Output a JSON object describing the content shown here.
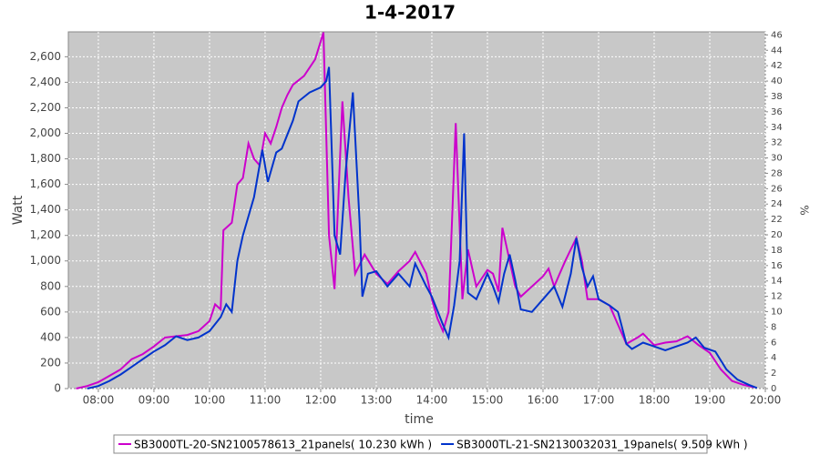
{
  "chart_data": {
    "type": "line",
    "title": "1-4-2017",
    "x_label": "time",
    "y_label": "Watt",
    "y2_label": "%",
    "xlim": [
      7.46,
      20.0
    ],
    "xticks": [
      {
        "value": 8,
        "label": "08:00"
      },
      {
        "value": 9,
        "label": "09:00"
      },
      {
        "value": 10,
        "label": "10:00"
      },
      {
        "value": 11,
        "label": "11:00"
      },
      {
        "value": 12,
        "label": "12:00"
      },
      {
        "value": 13,
        "label": "13:00"
      },
      {
        "value": 14,
        "label": "14:00"
      },
      {
        "value": 15,
        "label": "15:00"
      },
      {
        "value": 16,
        "label": "16:00"
      },
      {
        "value": 17,
        "label": "17:00"
      },
      {
        "value": 18,
        "label": "18:00"
      },
      {
        "value": 19,
        "label": "19:00"
      },
      {
        "value": 20,
        "label": "20:00"
      }
    ],
    "ylim": [
      0,
      2795
    ],
    "yticks": [
      0,
      200,
      400,
      600,
      800,
      {
        "value": 1000,
        "label": "1,000"
      },
      {
        "value": 1200,
        "label": "1,200"
      },
      {
        "value": 1400,
        "label": "1,400"
      },
      {
        "value": 1600,
        "label": "1,600"
      },
      {
        "value": 1800,
        "label": "1,800"
      },
      {
        "value": 2000,
        "label": "2,000"
      },
      {
        "value": 2200,
        "label": "2,200"
      },
      {
        "value": 2400,
        "label": "2,400"
      },
      {
        "value": 2600,
        "label": "2,600"
      }
    ],
    "y2lim": [
      0,
      46.4
    ],
    "y2ticks": [
      0,
      2,
      4,
      6,
      8,
      10,
      12,
      14,
      16,
      18,
      20,
      22,
      24,
      26,
      28,
      30,
      32,
      34,
      36,
      38,
      40,
      42,
      44,
      46
    ],
    "grid": true,
    "series": [
      {
        "name": "SB3000TL-20-SN2100578613_21panels( 10.230 kWh )",
        "color": "#cc00cc",
        "x": [
          7.6,
          7.8,
          8.0,
          8.2,
          8.4,
          8.6,
          8.8,
          9.0,
          9.2,
          9.4,
          9.6,
          9.8,
          10.0,
          10.1,
          10.2,
          10.25,
          10.4,
          10.5,
          10.6,
          10.7,
          10.8,
          10.9,
          11.0,
          11.1,
          11.2,
          11.3,
          11.4,
          11.5,
          11.7,
          11.9,
          12.05,
          12.15,
          12.25,
          12.39,
          12.5,
          12.62,
          12.79,
          13.0,
          13.2,
          13.4,
          13.6,
          13.7,
          13.9,
          14.0,
          14.1,
          14.2,
          14.3,
          14.43,
          14.55,
          14.65,
          14.8,
          15.0,
          15.1,
          15.2,
          15.27,
          15.4,
          15.5,
          15.6,
          15.8,
          16.0,
          16.1,
          16.2,
          16.4,
          16.6,
          16.7,
          16.8,
          17.0,
          17.2,
          17.35,
          17.5,
          17.7,
          17.8,
          18.0,
          18.2,
          18.4,
          18.6,
          18.8,
          19.0,
          19.2,
          19.4,
          19.6,
          19.8
        ],
        "values": [
          0,
          20,
          50,
          100,
          150,
          230,
          270,
          330,
          400,
          410,
          420,
          450,
          530,
          660,
          620,
          1240,
          1300,
          1600,
          1650,
          1920,
          1800,
          1750,
          2000,
          1920,
          2050,
          2200,
          2300,
          2380,
          2450,
          2580,
          2790,
          1200,
          780,
          2250,
          1500,
          900,
          1050,
          900,
          820,
          920,
          1000,
          1070,
          900,
          700,
          550,
          450,
          600,
          2080,
          700,
          1090,
          800,
          930,
          900,
          760,
          1260,
          1000,
          800,
          720,
          800,
          880,
          940,
          800,
          1000,
          1180,
          1000,
          700,
          700,
          650,
          500,
          350,
          400,
          430,
          340,
          360,
          370,
          410,
          340,
          280,
          150,
          60,
          30,
          10
        ]
      },
      {
        "name": "SB3000TL-21-SN2130032031_19panels( 9.509 kWh )",
        "color": "#0033cc",
        "x": [
          7.8,
          8.0,
          8.2,
          8.4,
          8.6,
          8.8,
          9.0,
          9.2,
          9.4,
          9.6,
          9.8,
          10.0,
          10.2,
          10.3,
          10.4,
          10.5,
          10.6,
          10.8,
          10.95,
          11.05,
          11.2,
          11.3,
          11.5,
          11.6,
          11.8,
          12.0,
          12.1,
          12.15,
          12.25,
          12.35,
          12.45,
          12.58,
          12.7,
          12.75,
          12.85,
          13.0,
          13.2,
          13.4,
          13.6,
          13.7,
          13.9,
          14.0,
          14.2,
          14.3,
          14.4,
          14.5,
          14.58,
          14.65,
          14.8,
          15.0,
          15.1,
          15.2,
          15.3,
          15.4,
          15.5,
          15.6,
          15.8,
          16.0,
          16.2,
          16.35,
          16.5,
          16.6,
          16.7,
          16.8,
          16.9,
          17.0,
          17.2,
          17.35,
          17.5,
          17.6,
          17.8,
          18.0,
          18.2,
          18.4,
          18.6,
          18.75,
          18.9,
          19.1,
          19.3,
          19.5,
          19.7,
          19.85
        ],
        "values": [
          0,
          20,
          60,
          110,
          170,
          230,
          290,
          340,
          410,
          380,
          400,
          450,
          560,
          660,
          600,
          1000,
          1200,
          1500,
          1870,
          1620,
          1850,
          1880,
          2100,
          2250,
          2320,
          2360,
          2410,
          2520,
          1200,
          1050,
          1700,
          2320,
          1300,
          720,
          900,
          920,
          800,
          900,
          800,
          980,
          800,
          720,
          500,
          400,
          650,
          1000,
          2000,
          750,
          700,
          900,
          800,
          680,
          900,
          1050,
          850,
          620,
          600,
          700,
          800,
          640,
          900,
          1180,
          950,
          800,
          880,
          700,
          650,
          600,
          350,
          310,
          360,
          330,
          300,
          330,
          360,
          400,
          320,
          290,
          150,
          70,
          30,
          5
        ]
      }
    ]
  }
}
